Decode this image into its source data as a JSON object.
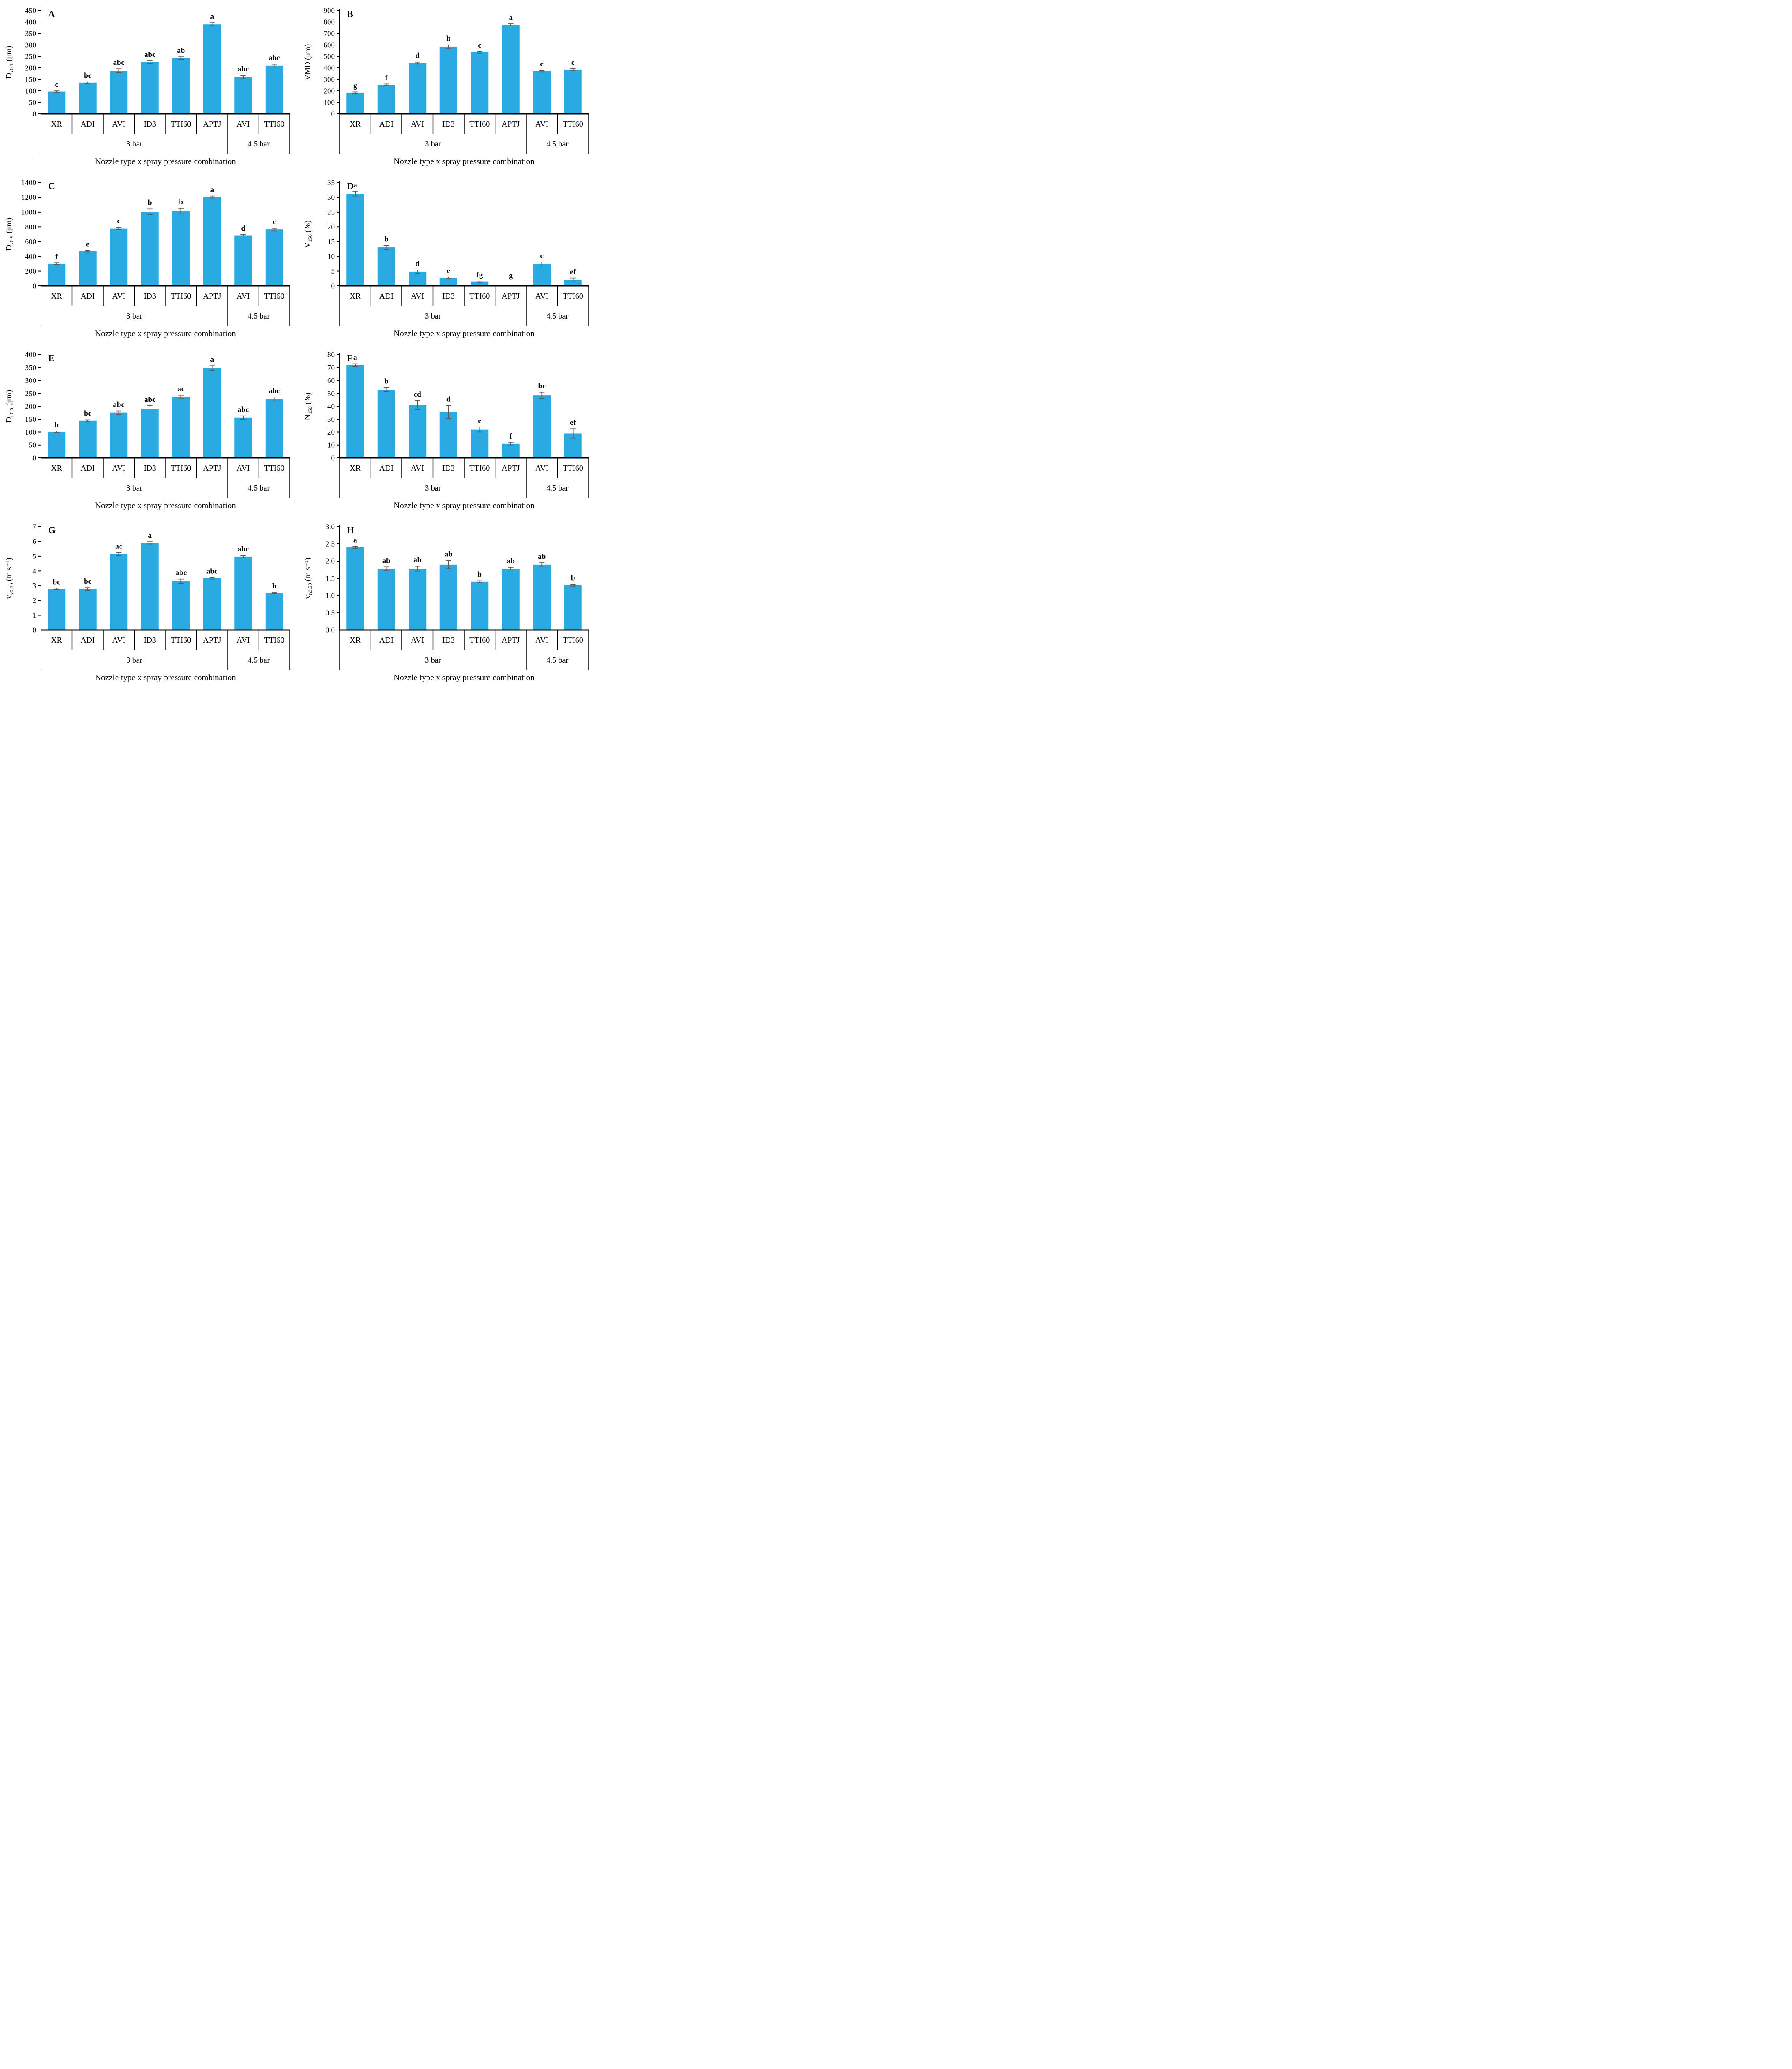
{
  "figure": {
    "x_axis_title": "Nozzle type x spray pressure combination",
    "categories": [
      "XR",
      "ADI",
      "AVI",
      "ID3",
      "TTI60",
      "APTJ",
      "AVI",
      "TTI60"
    ],
    "groups": [
      {
        "label": "3 bar",
        "span": 6
      },
      {
        "label": "4.5 bar",
        "span": 2
      }
    ],
    "bar_color": "#29ABE2",
    "error_color": "#595959",
    "axis_color": "#000000"
  },
  "chart_data": [
    {
      "panel": "A",
      "type": "bar",
      "ylabel_text": "Dv0.1 (μm)",
      "ylabel": {
        "main": "D",
        "sub": "v0.1",
        "unit": "(μm)"
      },
      "ylim": [
        0,
        450
      ],
      "ystep": 50,
      "ydecimals": 0,
      "values": [
        97,
        135,
        188,
        226,
        243,
        390,
        160,
        210
      ],
      "errors": [
        3,
        4,
        8,
        5,
        5,
        6,
        7,
        6
      ],
      "letters": [
        "c",
        "bc",
        "abc",
        "abc",
        "ab",
        "a",
        "abc",
        "abc"
      ]
    },
    {
      "panel": "B",
      "type": "bar",
      "ylabel_text": "VMD (μm)",
      "ylabel": {
        "main": "VMD",
        "sub": "",
        "unit": "(μm)"
      },
      "ylim": [
        0,
        900
      ],
      "ystep": 100,
      "ydecimals": 0,
      "values": [
        185,
        253,
        443,
        585,
        535,
        775,
        372,
        385
      ],
      "errors": [
        6,
        7,
        8,
        16,
        8,
        10,
        8,
        8
      ],
      "letters": [
        "g",
        "f",
        "d",
        "b",
        "c",
        "a",
        "e",
        "e"
      ]
    },
    {
      "panel": "C",
      "type": "bar",
      "ylabel_text": "Dv0.9 (μm)",
      "ylabel": {
        "main": "D",
        "sub": "v0.9",
        "unit": "(μm)"
      },
      "ylim": [
        0,
        1400
      ],
      "ystep": 200,
      "ydecimals": 0,
      "values": [
        300,
        470,
        780,
        1005,
        1015,
        1205,
        685,
        765
      ],
      "errors": [
        10,
        12,
        15,
        40,
        38,
        12,
        10,
        20
      ],
      "letters": [
        "f",
        "e",
        "c",
        "b",
        "b",
        "a",
        "d",
        "c"
      ]
    },
    {
      "panel": "D",
      "type": "bar",
      "ylabel_text": "V150 (%)",
      "ylabel": {
        "main": "V",
        "sub": "150",
        "unit": "(%)"
      },
      "ylim": [
        0,
        35
      ],
      "ystep": 5,
      "ydecimals": 0,
      "values": [
        31.2,
        13,
        4.8,
        2.7,
        1.4,
        0.15,
        7.4,
        2.1
      ],
      "errors": [
        0.8,
        0.7,
        0.6,
        0.3,
        0.2,
        0,
        0.7,
        0.5
      ],
      "letters": [
        "a",
        "b",
        "d",
        "e",
        "fg",
        "g",
        "c",
        "ef"
      ]
    },
    {
      "panel": "E",
      "type": "bar",
      "ylabel_text": "Dn0.5 (μm)",
      "ylabel": {
        "main": "D",
        "sub": "n0.5",
        "unit": "(μm)"
      },
      "ylim": [
        0,
        400
      ],
      "ystep": 50,
      "ydecimals": 0,
      "values": [
        101,
        144,
        175,
        190,
        237,
        348,
        156,
        228
      ],
      "errors": [
        3,
        4,
        7,
        12,
        6,
        9,
        7,
        8
      ],
      "letters": [
        "b",
        "bc",
        "abc",
        "abc",
        "ac",
        "a",
        "abc",
        "abc"
      ]
    },
    {
      "panel": "F",
      "type": "bar",
      "ylabel_text": "N150 (%)",
      "ylabel": {
        "main": "N",
        "sub": "150",
        "unit": "(%)"
      },
      "ylim": [
        0,
        80
      ],
      "ystep": 10,
      "ydecimals": 0,
      "values": [
        72,
        53,
        41,
        35.5,
        22,
        11,
        48.5,
        19
      ],
      "errors": [
        1,
        1.5,
        3.5,
        5,
        2,
        1,
        2.5,
        3.5
      ],
      "letters": [
        "a",
        "b",
        "cd",
        "d",
        "e",
        "f",
        "bc",
        "ef"
      ]
    },
    {
      "panel": "G",
      "type": "bar",
      "ylabel_text": "vv0.50 (m s−1)",
      "ylabel": {
        "main": "v",
        "sub": "v0.50",
        "unit": "(m s⁻¹)"
      },
      "ylim": [
        0,
        7
      ],
      "ystep": 1,
      "ydecimals": 0,
      "values": [
        2.78,
        2.77,
        5.15,
        5.9,
        3.3,
        3.5,
        4.97,
        2.5
      ],
      "errors": [
        0.05,
        0.1,
        0.1,
        0.08,
        0.15,
        0.05,
        0.08,
        0.04
      ],
      "letters": [
        "bc",
        "bc",
        "ac",
        "a",
        "abc",
        "abc",
        "abc",
        "b"
      ]
    },
    {
      "panel": "H",
      "type": "bar",
      "ylabel_text": "vn0.50 (m s−1)",
      "ylabel": {
        "main": "v",
        "sub": "n0.50",
        "unit": "(m s⁻¹)"
      },
      "ylim": [
        0,
        3
      ],
      "ystep": 0.5,
      "ydecimals": 1,
      "values": [
        2.4,
        1.78,
        1.78,
        1.9,
        1.4,
        1.78,
        1.9,
        1.3
      ],
      "errors": [
        0.03,
        0.05,
        0.07,
        0.12,
        0.03,
        0.04,
        0.05,
        0.03
      ],
      "letters": [
        "a",
        "ab",
        "ab",
        "ab",
        "b",
        "ab",
        "ab",
        "b"
      ]
    }
  ]
}
